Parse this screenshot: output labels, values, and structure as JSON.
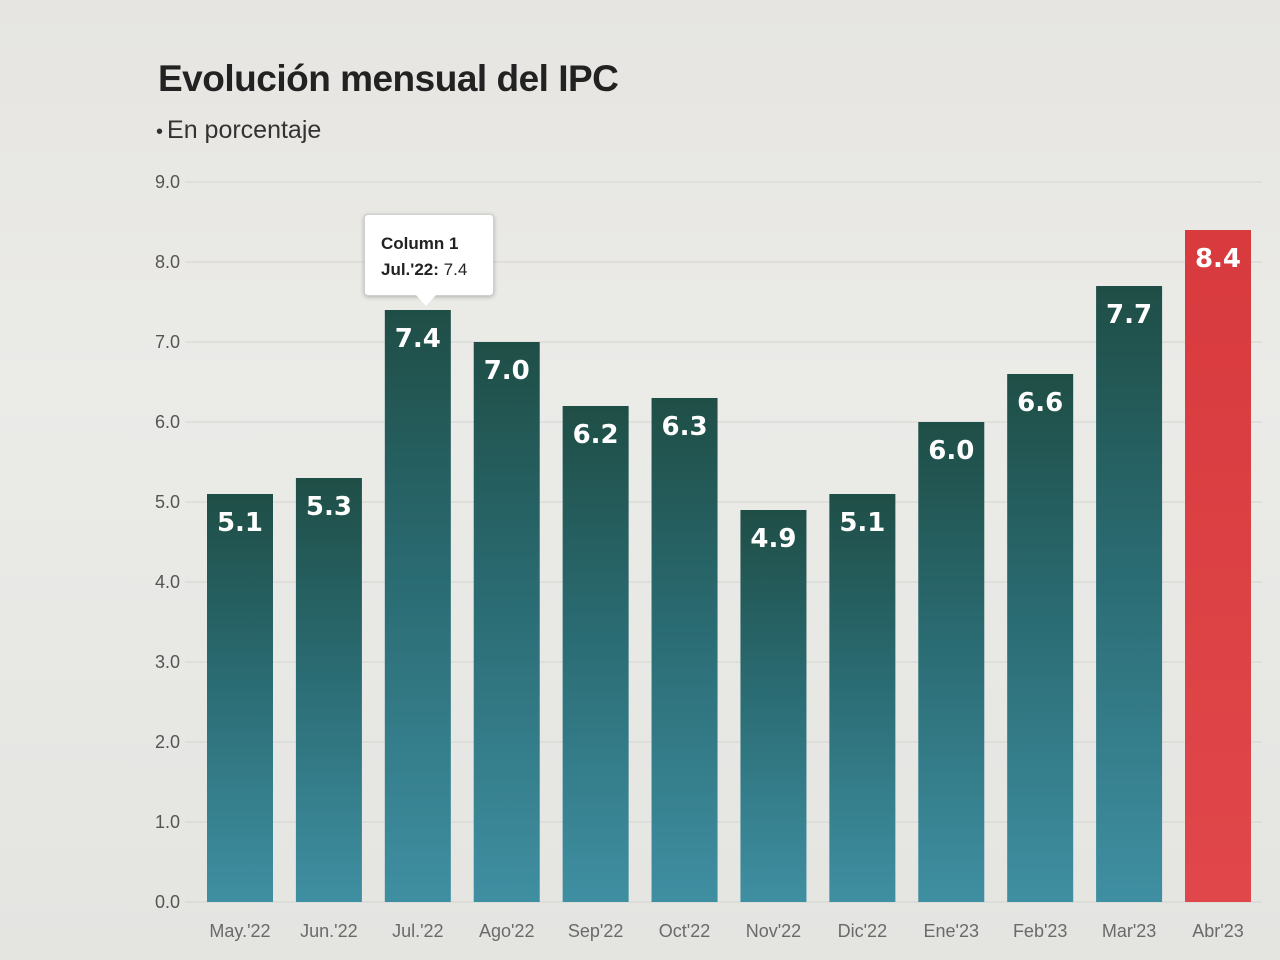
{
  "chart_data": {
    "type": "bar",
    "title": "Evolución mensual del IPC",
    "subtitle": "En porcentaje",
    "categories": [
      "May.'22",
      "Jun.'22",
      "Jul.'22",
      "Ago'22",
      "Sep'22",
      "Oct'22",
      "Nov'22",
      "Dic'22",
      "Ene'23",
      "Feb'23",
      "Mar'23",
      "Abr'23"
    ],
    "series": [
      {
        "name": "Column 1",
        "values": [
          5.1,
          5.3,
          7.4,
          7.0,
          6.2,
          6.3,
          4.9,
          5.1,
          6.0,
          6.6,
          7.7,
          8.4
        ],
        "labels": [
          "5.1",
          "5.3",
          "7.4",
          "7.0",
          "6.2",
          "6.3",
          "4.9",
          "5.1",
          "6.0",
          "6.6",
          "7.7",
          "8.4"
        ]
      }
    ],
    "ylim": [
      0,
      9
    ],
    "yticks": [
      "0.0",
      "1.0",
      "2.0",
      "3.0",
      "4.0",
      "5.0",
      "6.0",
      "7.0",
      "8.0",
      "9.0"
    ],
    "grid": true,
    "colors": {
      "bar_top": "#1f4e46",
      "bar_mid": "#2a6b72",
      "bar_bottom": "#3f8fa2",
      "highlight": "#d83a3e",
      "highlight_index": 11
    },
    "tooltip": {
      "series": "Column 1",
      "category": "Jul.'22:",
      "value": "7.4"
    }
  }
}
